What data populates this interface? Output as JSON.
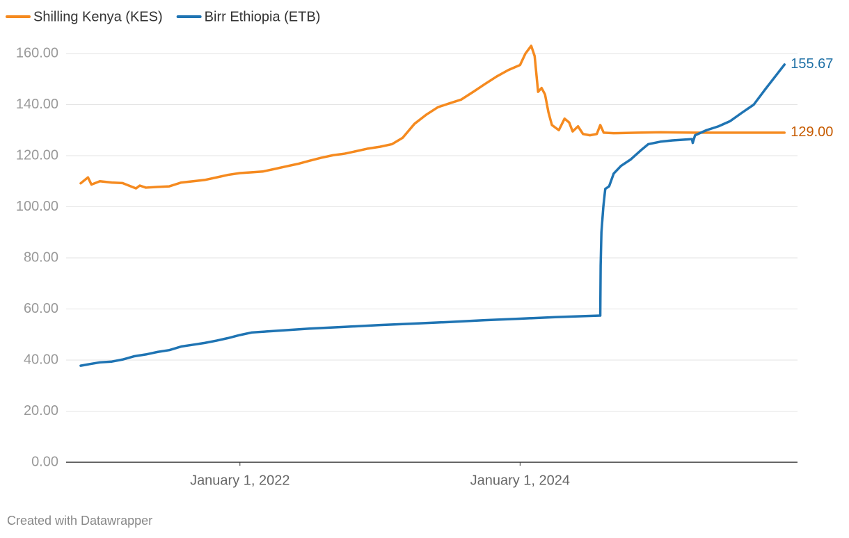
{
  "chart_data": {
    "type": "line",
    "credit": "Created with Datawrapper",
    "ylim": [
      0,
      160
    ],
    "yticks": [
      {
        "value": 0,
        "label": "0.00"
      },
      {
        "value": 20,
        "label": "20.00"
      },
      {
        "value": 40,
        "label": "40.00"
      },
      {
        "value": 60,
        "label": "60.00"
      },
      {
        "value": 80,
        "label": "80.00"
      },
      {
        "value": 100,
        "label": "100.00"
      },
      {
        "value": 120,
        "label": "120.00"
      },
      {
        "value": 140,
        "label": "140.00"
      },
      {
        "value": 160,
        "label": "160.00"
      }
    ],
    "xlim": [
      "2020-10-05",
      "2025-12-24"
    ],
    "xticks": [
      {
        "value": "2022-01-01",
        "label": "January 1, 2022"
      },
      {
        "value": "2024-01-01",
        "label": "January 1, 2024"
      }
    ],
    "grid": true,
    "legend": "top-left",
    "series": [
      {
        "name": "Shilling Kenya (KES)",
        "color": "#f58a1f",
        "label_color": "#c65b00",
        "x": [
          "2020-11-12",
          "2020-12-01",
          "2020-12-10",
          "2021-01-01",
          "2021-02-01",
          "2021-03-01",
          "2021-04-05",
          "2021-04-15",
          "2021-05-01",
          "2021-06-01",
          "2021-07-01",
          "2021-08-01",
          "2021-09-01",
          "2021-10-01",
          "2021-11-01",
          "2021-12-01",
          "2022-01-01",
          "2022-02-01",
          "2022-03-01",
          "2022-04-01",
          "2022-05-01",
          "2022-06-01",
          "2022-07-01",
          "2022-08-01",
          "2022-09-01",
          "2022-10-01",
          "2022-11-01",
          "2022-12-01",
          "2023-01-01",
          "2023-02-01",
          "2023-03-01",
          "2023-04-01",
          "2023-05-01",
          "2023-06-01",
          "2023-07-01",
          "2023-08-01",
          "2023-09-01",
          "2023-10-01",
          "2023-11-01",
          "2023-12-01",
          "2024-01-01",
          "2024-01-15",
          "2024-01-30",
          "2024-02-08",
          "2024-02-17",
          "2024-02-26",
          "2024-03-06",
          "2024-03-15",
          "2024-03-24",
          "2024-04-11",
          "2024-04-26",
          "2024-05-08",
          "2024-05-17",
          "2024-05-31",
          "2024-06-13",
          "2024-07-01",
          "2024-07-19",
          "2024-07-28",
          "2024-08-06",
          "2024-09-01",
          "2024-11-01",
          "2025-01-01",
          "2025-04-01",
          "2025-07-01",
          "2025-11-20"
        ],
        "values": [
          109.2,
          111.5,
          108.7,
          110,
          109.5,
          109.3,
          107.2,
          108.3,
          107.5,
          107.8,
          108,
          109.5,
          110,
          110.5,
          111.5,
          112.5,
          113.2,
          113.5,
          113.8,
          114.8,
          115.8,
          116.8,
          118,
          119.2,
          120.2,
          120.8,
          121.8,
          122.8,
          123.5,
          124.5,
          127,
          132.5,
          136,
          139,
          140.5,
          142,
          145,
          148,
          151,
          153.5,
          155.5,
          160,
          163,
          159,
          145,
          146.5,
          144,
          137,
          132,
          130,
          134.5,
          133,
          129.5,
          131.5,
          128.5,
          128,
          128.5,
          132,
          129,
          128.8,
          129,
          129.2,
          129,
          129,
          129
        ],
        "value_labels": [
          null,
          null,
          null,
          null,
          null,
          null,
          null,
          null,
          null,
          null,
          null,
          null,
          null,
          null,
          null,
          null,
          null,
          null,
          null,
          null,
          null,
          null,
          null,
          null,
          null,
          null,
          null,
          null,
          null,
          null,
          null,
          null,
          null,
          null,
          null,
          null,
          null,
          null,
          null,
          null,
          null,
          null,
          null,
          null,
          null,
          null,
          null,
          null,
          null,
          null,
          null,
          null,
          null,
          null,
          null,
          null,
          null,
          null,
          null,
          null,
          null,
          null,
          null,
          null,
          "129.00"
        ]
      },
      {
        "name": "Birr Ethiopia (ETB)",
        "color": "#1f74b3",
        "label_color": "#1d6fa5",
        "x": [
          "2020-11-12",
          "2020-12-01",
          "2021-01-01",
          "2021-02-01",
          "2021-03-01",
          "2021-04-01",
          "2021-05-01",
          "2021-06-01",
          "2021-07-01",
          "2021-08-01",
          "2021-09-01",
          "2021-10-01",
          "2021-11-01",
          "2021-12-01",
          "2022-01-01",
          "2022-02-01",
          "2022-04-01",
          "2022-07-01",
          "2022-10-01",
          "2023-01-01",
          "2023-04-01",
          "2023-07-01",
          "2023-10-01",
          "2024-01-01",
          "2024-04-01",
          "2024-07-28",
          "2024-07-29",
          "2024-07-31",
          "2024-08-05",
          "2024-08-10",
          "2024-08-20",
          "2024-09-01",
          "2024-09-20",
          "2024-10-15",
          "2024-11-10",
          "2024-11-30",
          "2025-01-01",
          "2025-02-01",
          "2025-03-24",
          "2025-03-26",
          "2025-04-01",
          "2025-05-01",
          "2025-06-01",
          "2025-07-01",
          "2025-08-01",
          "2025-09-01",
          "2025-10-01",
          "2025-11-01",
          "2025-11-20"
        ],
        "values": [
          37.8,
          38.3,
          39.1,
          39.4,
          40.2,
          41.5,
          42.2,
          43.2,
          43.9,
          45.3,
          46,
          46.7,
          47.6,
          48.6,
          49.8,
          50.8,
          51.4,
          52.3,
          53,
          53.7,
          54.3,
          54.9,
          55.6,
          56.2,
          56.8,
          57.4,
          77,
          90,
          100,
          107,
          108,
          113,
          116,
          118.5,
          122,
          124.5,
          125.5,
          126,
          126.5,
          125,
          128,
          130,
          131.5,
          133.5,
          136.8,
          140,
          146,
          152,
          155.67
        ]
      }
    ]
  }
}
